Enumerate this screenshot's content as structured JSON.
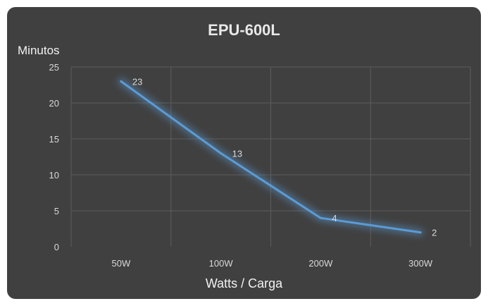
{
  "chart_data": {
    "type": "line",
    "title": "EPU-600L",
    "xlabel": "Watts / Carga",
    "ylabel": "Minutos",
    "categories": [
      "50W",
      "100W",
      "200W",
      "300W"
    ],
    "series": [
      {
        "values": [
          23,
          13,
          4,
          2
        ],
        "data_labels": [
          "23",
          "13",
          "4",
          "2"
        ]
      }
    ],
    "ylim": [
      0,
      25
    ],
    "yticks": [
      "0",
      "5",
      "10",
      "15",
      "20",
      "25"
    ],
    "grid": true,
    "colors": {
      "line": "#5b9bd5",
      "background": "#404040",
      "grid": "#5c5c5c",
      "text": "#d9d9d9"
    }
  }
}
